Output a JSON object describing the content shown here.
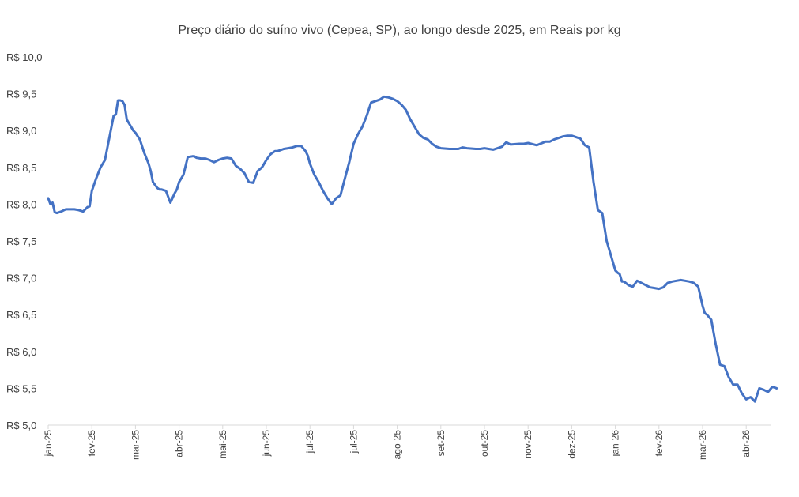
{
  "chart_data": {
    "type": "line",
    "title": "Preço diário do suíno vivo (Cepea, SP), ao longo desde 2025, em Reais por kg",
    "xlabel": "",
    "ylabel": "",
    "ylim": [
      5.0,
      10.0
    ],
    "y_ticks": [
      "R$ 10,0",
      "R$ 9,5",
      "R$ 9,0",
      "R$ 8,5",
      "R$ 8,0",
      "R$ 7,5",
      "R$ 7,0",
      "R$ 6,5",
      "R$ 6,0",
      "R$ 5,5",
      "R$ 5,0"
    ],
    "x_ticks": [
      "jan-25",
      "fev-25",
      "mar-25",
      "abr-25",
      "mai-25",
      "jun-25",
      "jul-25",
      "jul-25",
      "ago-25",
      "set-25",
      "out-25",
      "nov-25",
      "dez-25",
      "jan-26",
      "fev-26",
      "mar-26",
      "abr-26"
    ],
    "grid": false,
    "line_color": "#4472C4",
    "series": [
      {
        "x": [
          0,
          0.05,
          0.1,
          0.15,
          0.2,
          0.3,
          0.4,
          0.5,
          0.6,
          0.7,
          0.8,
          0.9,
          0.95,
          1.0,
          1.1,
          1.2,
          1.3,
          1.4,
          1.5,
          1.55,
          1.6,
          1.65,
          1.7,
          1.75,
          1.8,
          1.85,
          1.9,
          1.95,
          2.0,
          2.1,
          2.2,
          2.3,
          2.35,
          2.4,
          2.5,
          2.55,
          2.6,
          2.7,
          2.75,
          2.8,
          2.9,
          2.95,
          3.0,
          3.1,
          3.2,
          3.3,
          3.35,
          3.4,
          3.5,
          3.6,
          3.7,
          3.8,
          3.9,
          4.0,
          4.1,
          4.2,
          4.3,
          4.4,
          4.5,
          4.6,
          4.7,
          4.8,
          4.9,
          5.0,
          5.1,
          5.2,
          5.25,
          5.3,
          5.4,
          5.5,
          5.6,
          5.7,
          5.8,
          5.9,
          5.95,
          6.0,
          6.1,
          6.2,
          6.3,
          6.4,
          6.5,
          6.6,
          6.7,
          6.8,
          6.9,
          7.0,
          7.1,
          7.2,
          7.3,
          7.4,
          7.5,
          7.6,
          7.7,
          7.8,
          7.9,
          8.0,
          8.1,
          8.2,
          8.3,
          8.4,
          8.5,
          8.6,
          8.7,
          8.8,
          8.9,
          9.0,
          9.2,
          9.4,
          9.5,
          9.6,
          9.8,
          9.9,
          10.0,
          10.2,
          10.4,
          10.5,
          10.6,
          10.8,
          10.9,
          11.0,
          11.2,
          11.4,
          11.5,
          11.6,
          11.8,
          11.9,
          12.0,
          12.1,
          12.2,
          12.3,
          12.4,
          12.5,
          12.6,
          12.7,
          12.8,
          12.9,
          13.0,
          13.05,
          13.1,
          13.15,
          13.2,
          13.3,
          13.4,
          13.5,
          13.6,
          13.7,
          13.8,
          13.9,
          14.0,
          14.1,
          14.2,
          14.3,
          14.4,
          14.5,
          14.6,
          14.7,
          14.8,
          14.9,
          15.0,
          15.05,
          15.1,
          15.2,
          15.3,
          15.4,
          15.5,
          15.6,
          15.7,
          15.8,
          15.9,
          16.0,
          16.1,
          16.2,
          16.3,
          16.4,
          16.5,
          16.6,
          16.7
        ],
        "values": [
          8.08,
          8.0,
          8.02,
          7.89,
          7.88,
          7.9,
          7.93,
          7.93,
          7.93,
          7.92,
          7.9,
          7.96,
          7.97,
          8.18,
          8.35,
          8.5,
          8.6,
          8.9,
          9.2,
          9.22,
          9.41,
          9.41,
          9.4,
          9.35,
          9.15,
          9.1,
          9.05,
          9.0,
          8.97,
          8.88,
          8.7,
          8.55,
          8.45,
          8.3,
          8.22,
          8.2,
          8.2,
          8.18,
          8.1,
          8.02,
          8.15,
          8.2,
          8.3,
          8.4,
          8.64,
          8.65,
          8.65,
          8.63,
          8.62,
          8.62,
          8.6,
          8.57,
          8.6,
          8.62,
          8.63,
          8.62,
          8.52,
          8.48,
          8.42,
          8.3,
          8.29,
          8.45,
          8.5,
          8.6,
          8.68,
          8.72,
          8.72,
          8.73,
          8.75,
          8.76,
          8.77,
          8.79,
          8.79,
          8.72,
          8.66,
          8.55,
          8.4,
          8.3,
          8.18,
          8.08,
          8.0,
          8.08,
          8.12,
          8.35,
          8.57,
          8.82,
          8.95,
          9.05,
          9.2,
          9.38,
          9.4,
          9.42,
          9.46,
          9.45,
          9.43,
          9.4,
          9.35,
          9.28,
          9.15,
          9.05,
          8.95,
          8.9,
          8.88,
          8.82,
          8.78,
          8.76,
          8.75,
          8.75,
          8.77,
          8.76,
          8.75,
          8.75,
          8.76,
          8.74,
          8.78,
          8.84,
          8.81,
          8.82,
          8.82,
          8.83,
          8.8,
          8.85,
          8.85,
          8.88,
          8.92,
          8.93,
          8.93,
          8.91,
          8.89,
          8.8,
          8.77,
          8.3,
          7.92,
          7.88,
          7.5,
          7.3,
          7.1,
          7.07,
          7.05,
          6.95,
          6.95,
          6.9,
          6.88,
          6.96,
          6.93,
          6.9,
          6.87,
          6.86,
          6.85,
          6.87,
          6.93,
          6.95,
          6.96,
          6.97,
          6.96,
          6.95,
          6.93,
          6.88,
          6.62,
          6.52,
          6.5,
          6.43,
          6.1,
          5.82,
          5.8,
          5.65,
          5.55,
          5.55,
          5.43,
          5.35,
          5.38,
          5.32,
          5.5,
          5.48,
          5.45,
          5.52,
          5.5
        ]
      }
    ]
  }
}
